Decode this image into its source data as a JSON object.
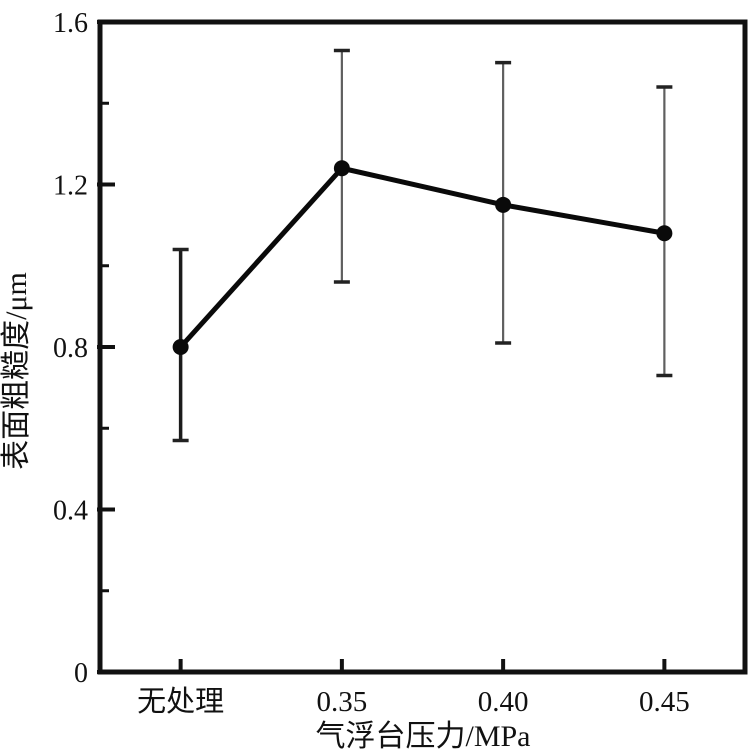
{
  "figure": {
    "background_color": "#ffffff",
    "frame_color": "#111111",
    "line_color": "#0a0a0a",
    "marker_color": "#0a0a0a",
    "errorbar_thin_color": "#5f5f5f",
    "errorbar_thick_color": "#1b1b1b",
    "errorbar_cap_color": "#222222"
  },
  "chart_data": {
    "type": "line",
    "title": "",
    "xlabel": "气浮台压力/MPa",
    "ylabel": "表面粗糙度/μm",
    "categories": [
      "无处理",
      "0.35",
      "0.40",
      "0.45"
    ],
    "series": [
      {
        "name": "表面粗糙度",
        "values": [
          0.8,
          1.24,
          1.15,
          1.08
        ],
        "error_low": [
          0.57,
          0.96,
          0.81,
          0.73
        ],
        "error_high": [
          1.04,
          1.53,
          1.5,
          1.44
        ]
      }
    ],
    "ylim": [
      0,
      1.6
    ],
    "yticks": [
      0,
      0.4,
      0.8,
      1.2,
      1.6
    ],
    "ytick_labels": [
      "0",
      "0.4",
      "0.8",
      "1.2",
      "1.6"
    ],
    "minor_yticks": [
      0.2,
      0.6,
      1.0,
      1.4
    ],
    "grid": false,
    "legend": "none",
    "marker": "filled-circle"
  }
}
